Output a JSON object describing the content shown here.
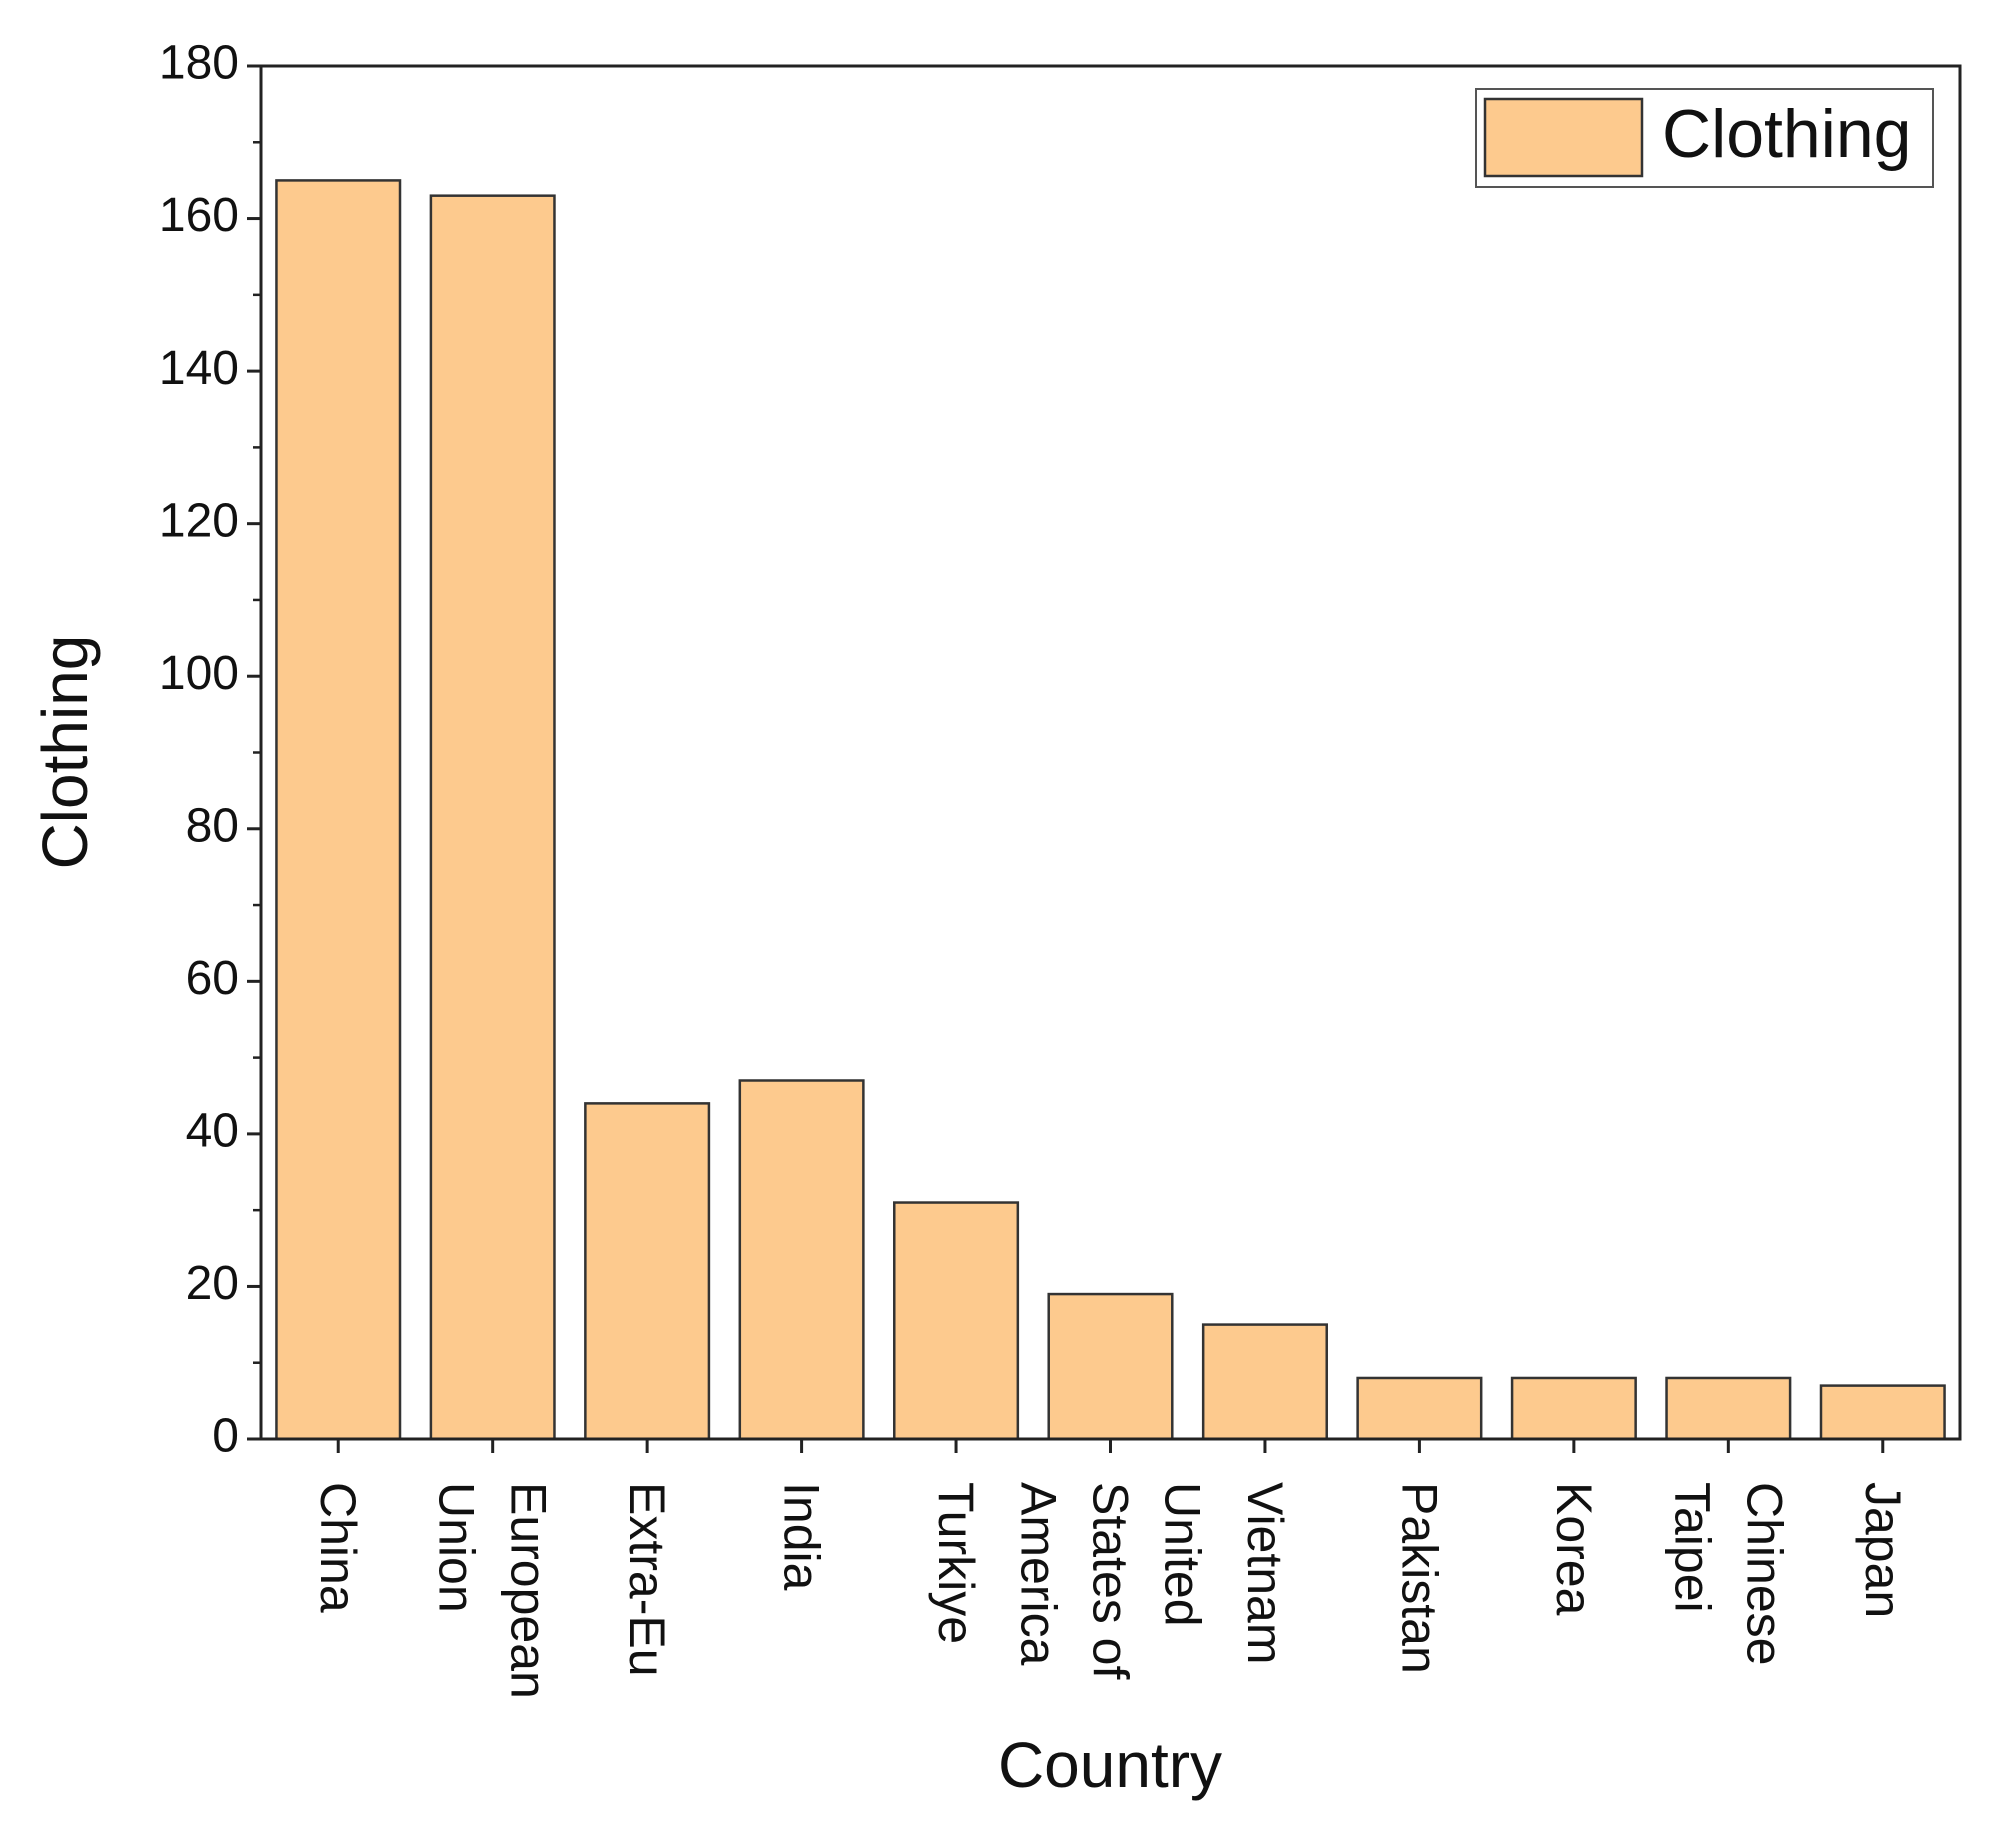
{
  "chart_data": {
    "type": "bar",
    "x_label": "Country",
    "y_label": "Clothing",
    "categories": [
      "China",
      "European Union",
      "Extra-Eu",
      "India",
      "Turkiye",
      "United States of America",
      "Vietnam",
      "Pakistan",
      "Korea",
      "Chinese Taipei",
      "Japan"
    ],
    "series": [
      {
        "name": "Clothing",
        "color": "#fdca8e",
        "values": [
          165,
          163,
          44,
          47,
          31,
          19,
          15,
          8,
          8,
          8,
          7
        ]
      }
    ],
    "ylim": [
      0,
      180
    ],
    "yticks": [
      0,
      20,
      40,
      60,
      80,
      100,
      120,
      140,
      160,
      180
    ],
    "legend": "upper right",
    "grid": false
  }
}
